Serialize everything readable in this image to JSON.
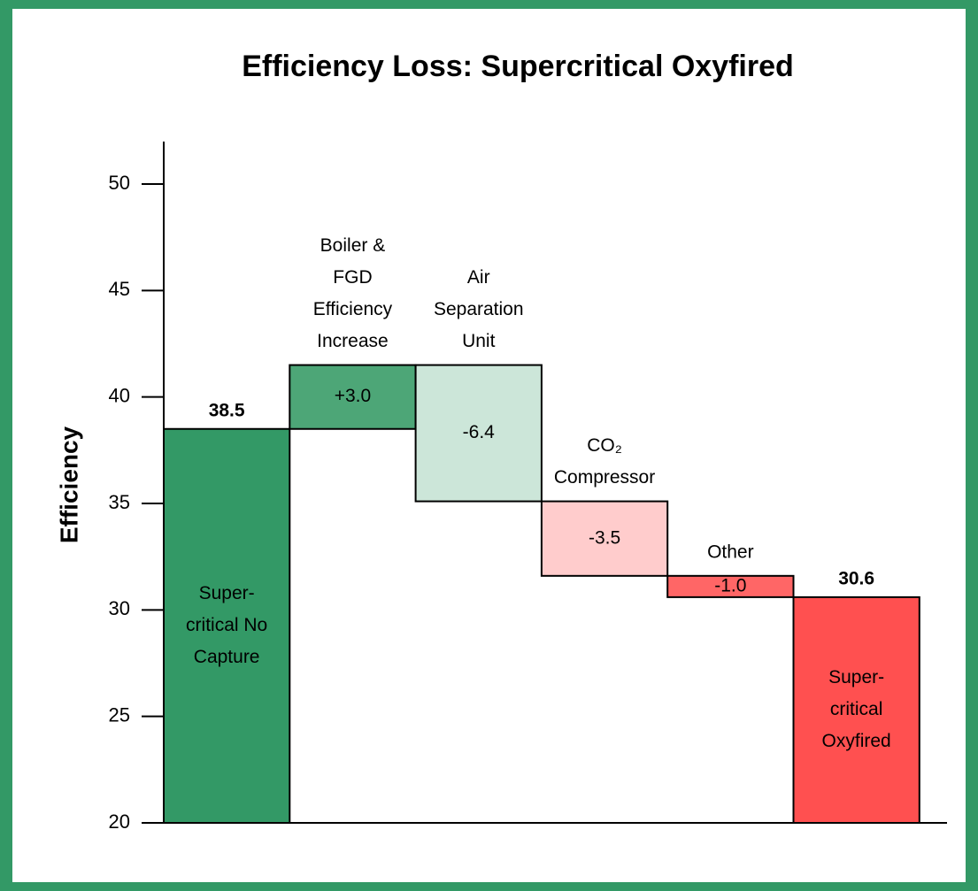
{
  "chart_data": {
    "type": "waterfall",
    "title": "Efficiency Loss: Supercritical Oxyfired",
    "y_label": "Efficiency",
    "categories": [
      [
        "Super-",
        "critical No",
        "Capture"
      ],
      [
        "Boiler &",
        "FGD",
        "Efficiency",
        "Increase"
      ],
      [
        "Air",
        "Separation",
        "Unit"
      ],
      [
        "CO₂",
        "Compressor"
      ],
      [
        "Other"
      ],
      [
        "Super-",
        "critical",
        "Oxyfired"
      ]
    ],
    "measure": [
      "absolute",
      "relative",
      "relative",
      "relative",
      "relative",
      "absolute"
    ],
    "values": [
      38.5,
      3.0,
      -6.4,
      -3.5,
      -1.0,
      30.6
    ],
    "value_labels": [
      "38.5",
      "+3.0",
      "-6.4",
      "-3.5",
      "-1.0",
      "30.6"
    ],
    "colors": [
      "#339966",
      "#4da677",
      "#cce6d9",
      "#ffcccc",
      "#ff6666",
      "#ff5050"
    ],
    "ylim": [
      20,
      50
    ],
    "yticks": [
      20,
      25,
      30,
      35,
      40,
      45,
      50
    ],
    "grid": false
  }
}
